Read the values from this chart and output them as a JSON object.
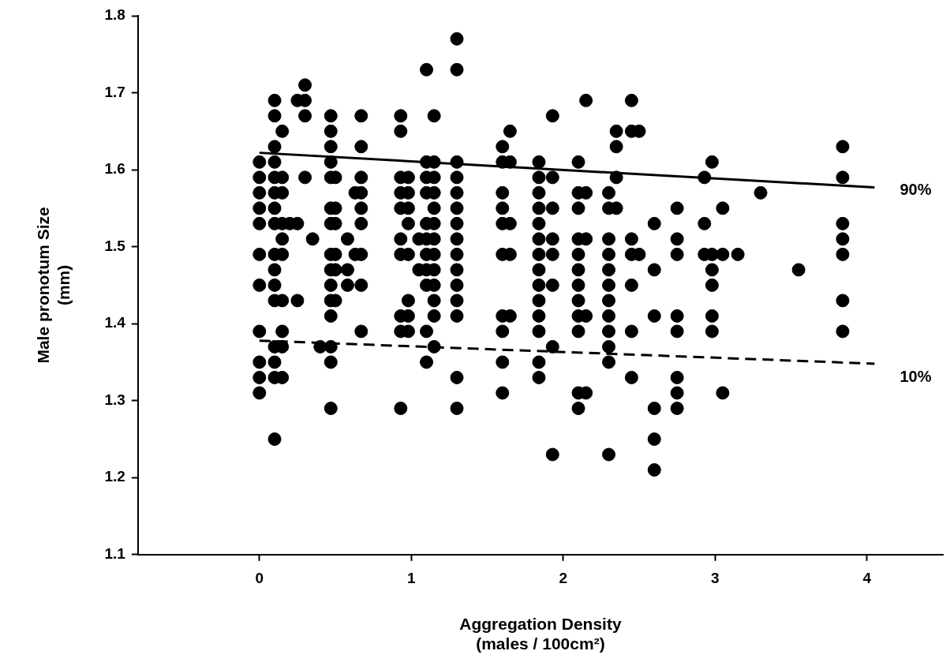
{
  "chart_data": {
    "type": "scatter",
    "xlabel": "Aggregation Density\n(males / 100cm²)",
    "ylabel": "Male pronotum Size\n(mm)",
    "xlim": [
      -0.8,
      4.5
    ],
    "ylim": [
      1.1,
      1.8
    ],
    "xticks": [
      0,
      1,
      2,
      3,
      4
    ],
    "yticks": [
      1.1,
      1.2,
      1.3,
      1.4,
      1.5,
      1.6,
      1.7,
      1.8
    ],
    "grid": false,
    "legend": false,
    "series": [
      {
        "color": "#000000",
        "marker": "circle",
        "x": [
          0,
          0,
          0,
          0,
          0,
          0,
          0,
          0,
          0,
          0,
          0,
          0.1,
          0.1,
          0.1,
          0.1,
          0.1,
          0.1,
          0.1,
          0.1,
          0.1,
          0.1,
          0.1,
          0.1,
          0.1,
          0.1,
          0.1,
          0.1,
          0.15,
          0.15,
          0.15,
          0.15,
          0.15,
          0.15,
          0.15,
          0.15,
          0.15,
          0.15,
          0.2,
          0.25,
          0.25,
          0.25,
          0.3,
          0.3,
          0.3,
          0.3,
          0.35,
          0.4,
          0.47,
          0.47,
          0.47,
          0.47,
          0.47,
          0.47,
          0.47,
          0.47,
          0.47,
          0.47,
          0.47,
          0.47,
          0.47,
          0.47,
          0.47,
          0.5,
          0.5,
          0.5,
          0.5,
          0.5,
          0.5,
          0.58,
          0.58,
          0.58,
          0.63,
          0.63,
          0.67,
          0.67,
          0.67,
          0.67,
          0.67,
          0.67,
          0.67,
          0.67,
          0.67,
          0.93,
          0.93,
          0.93,
          0.93,
          0.93,
          0.93,
          0.93,
          0.93,
          0.93,
          0.93,
          0.98,
          0.98,
          0.98,
          0.98,
          0.98,
          0.98,
          0.98,
          0.98,
          1.05,
          1.05,
          1.1,
          1.1,
          1.1,
          1.1,
          1.1,
          1.1,
          1.1,
          1.1,
          1.1,
          1.1,
          1.1,
          1.15,
          1.15,
          1.15,
          1.15,
          1.15,
          1.15,
          1.15,
          1.15,
          1.15,
          1.15,
          1.15,
          1.15,
          1.15,
          1.3,
          1.3,
          1.3,
          1.3,
          1.3,
          1.3,
          1.3,
          1.3,
          1.3,
          1.3,
          1.3,
          1.3,
          1.3,
          1.3,
          1.3,
          1.6,
          1.6,
          1.6,
          1.6,
          1.6,
          1.6,
          1.6,
          1.6,
          1.6,
          1.6,
          1.65,
          1.65,
          1.65,
          1.65,
          1.65,
          1.84,
          1.84,
          1.84,
          1.84,
          1.84,
          1.84,
          1.84,
          1.84,
          1.84,
          1.84,
          1.84,
          1.84,
          1.84,
          1.84,
          1.93,
          1.93,
          1.93,
          1.93,
          1.93,
          1.93,
          1.93,
          1.93,
          2.1,
          2.1,
          2.1,
          2.1,
          2.1,
          2.1,
          2.1,
          2.1,
          2.1,
          2.1,
          2.1,
          2.1,
          2.15,
          2.15,
          2.15,
          2.15,
          2.15,
          2.3,
          2.3,
          2.3,
          2.3,
          2.3,
          2.3,
          2.3,
          2.3,
          2.3,
          2.3,
          2.3,
          2.3,
          2.35,
          2.35,
          2.35,
          2.35,
          2.45,
          2.45,
          2.45,
          2.45,
          2.45,
          2.45,
          2.45,
          2.5,
          2.5,
          2.6,
          2.6,
          2.6,
          2.6,
          2.6,
          2.6,
          2.75,
          2.75,
          2.75,
          2.75,
          2.75,
          2.75,
          2.75,
          2.75,
          2.93,
          2.93,
          2.93,
          2.98,
          2.98,
          2.98,
          2.98,
          2.98,
          2.98,
          3.05,
          3.05,
          3.05,
          3.15,
          3.3,
          3.55,
          3.84,
          3.84,
          3.84,
          3.84,
          3.84,
          3.84,
          3.84
        ],
        "values": [
          1.61,
          1.59,
          1.57,
          1.55,
          1.53,
          1.49,
          1.45,
          1.39,
          1.35,
          1.33,
          1.31,
          1.69,
          1.67,
          1.63,
          1.61,
          1.59,
          1.57,
          1.55,
          1.53,
          1.49,
          1.47,
          1.45,
          1.43,
          1.37,
          1.35,
          1.33,
          1.25,
          1.65,
          1.59,
          1.57,
          1.53,
          1.51,
          1.49,
          1.43,
          1.39,
          1.37,
          1.33,
          1.53,
          1.69,
          1.53,
          1.43,
          1.71,
          1.69,
          1.67,
          1.59,
          1.51,
          1.37,
          1.67,
          1.65,
          1.63,
          1.61,
          1.59,
          1.55,
          1.53,
          1.49,
          1.47,
          1.45,
          1.43,
          1.41,
          1.37,
          1.35,
          1.29,
          1.59,
          1.55,
          1.53,
          1.49,
          1.47,
          1.43,
          1.51,
          1.47,
          1.45,
          1.57,
          1.49,
          1.67,
          1.63,
          1.59,
          1.57,
          1.55,
          1.53,
          1.49,
          1.45,
          1.39,
          1.67,
          1.65,
          1.59,
          1.57,
          1.55,
          1.51,
          1.49,
          1.41,
          1.39,
          1.29,
          1.59,
          1.57,
          1.55,
          1.53,
          1.49,
          1.43,
          1.41,
          1.39,
          1.51,
          1.47,
          1.73,
          1.61,
          1.59,
          1.57,
          1.53,
          1.51,
          1.49,
          1.47,
          1.45,
          1.39,
          1.35,
          1.67,
          1.61,
          1.59,
          1.57,
          1.55,
          1.53,
          1.51,
          1.49,
          1.47,
          1.45,
          1.43,
          1.41,
          1.37,
          1.77,
          1.73,
          1.61,
          1.59,
          1.57,
          1.55,
          1.53,
          1.51,
          1.49,
          1.47,
          1.45,
          1.43,
          1.41,
          1.33,
          1.29,
          1.63,
          1.61,
          1.57,
          1.55,
          1.53,
          1.49,
          1.41,
          1.39,
          1.35,
          1.31,
          1.65,
          1.61,
          1.53,
          1.49,
          1.41,
          1.61,
          1.59,
          1.57,
          1.55,
          1.53,
          1.51,
          1.49,
          1.47,
          1.45,
          1.43,
          1.41,
          1.39,
          1.35,
          1.33,
          1.67,
          1.59,
          1.55,
          1.51,
          1.49,
          1.45,
          1.37,
          1.23,
          1.61,
          1.57,
          1.55,
          1.51,
          1.49,
          1.47,
          1.45,
          1.43,
          1.41,
          1.39,
          1.31,
          1.29,
          1.69,
          1.57,
          1.51,
          1.41,
          1.31,
          1.57,
          1.55,
          1.51,
          1.49,
          1.47,
          1.45,
          1.43,
          1.41,
          1.39,
          1.37,
          1.35,
          1.23,
          1.65,
          1.63,
          1.59,
          1.55,
          1.69,
          1.65,
          1.51,
          1.49,
          1.45,
          1.39,
          1.33,
          1.65,
          1.49,
          1.53,
          1.47,
          1.41,
          1.29,
          1.25,
          1.21,
          1.55,
          1.51,
          1.49,
          1.41,
          1.39,
          1.33,
          1.31,
          1.29,
          1.59,
          1.53,
          1.49,
          1.61,
          1.49,
          1.47,
          1.45,
          1.41,
          1.39,
          1.55,
          1.49,
          1.31,
          1.49,
          1.57,
          1.47,
          1.63,
          1.59,
          1.53,
          1.51,
          1.49,
          1.43,
          1.39
        ]
      },
      {
        "name": "90%",
        "color": "#000000",
        "type": "line",
        "marker": "none",
        "line_style": "solid",
        "x": [
          0,
          4.05
        ],
        "values": [
          1.622,
          1.577
        ]
      },
      {
        "name": "10%",
        "color": "#000000",
        "type": "line",
        "marker": "none",
        "line_style": "dashed",
        "x": [
          0,
          4.05
        ],
        "values": [
          1.378,
          1.348
        ]
      }
    ]
  }
}
